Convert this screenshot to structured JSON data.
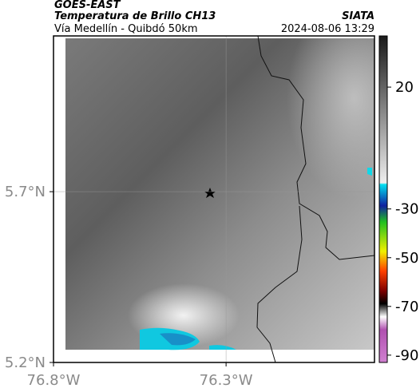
{
  "header": {
    "satellite": "GOES-EAST",
    "title": "Temperatura de Brillo CH13",
    "source": "SIATA",
    "region": "Vía Medellín - Quibdó 50km",
    "datetime": "2024-08-06 13:29"
  },
  "map": {
    "xlim": [
      -76.8,
      -75.87
    ],
    "ylim": [
      5.2,
      6.156
    ],
    "xticks": [
      {
        "value": -76.8,
        "label": "76.8°W"
      },
      {
        "value": -76.3,
        "label": "76.3°W"
      }
    ],
    "yticks": [
      {
        "value": 5.2,
        "label": "5.2°N"
      },
      {
        "value": 5.7,
        "label": "5.7°N"
      }
    ]
  },
  "colorbar": {
    "lim": [
      41,
      -93
    ],
    "ticks": [
      20,
      -30,
      -50,
      -70,
      -90
    ]
  }
}
